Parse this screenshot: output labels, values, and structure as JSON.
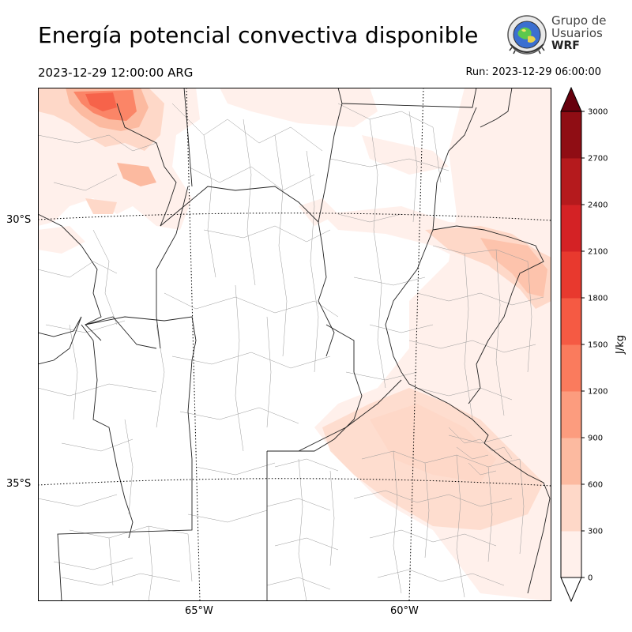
{
  "header": {
    "title": "Energía potencial convectiva disponible",
    "valid_time": "2023-12-29 12:00:00 ARG",
    "run_time": "Run: 2023-12-29 06:00:00"
  },
  "logo": {
    "line1": "Grupo de",
    "line2": "Usuarios",
    "line3": "WRF"
  },
  "map": {
    "lat_labels": [
      "30°S",
      "35°S"
    ],
    "lon_labels": [
      "65°W",
      "60°W"
    ],
    "field_colors": [
      "#fff5f0",
      "#fee0d2",
      "#fcbba1",
      "#fc9272",
      "#fb6a4a"
    ]
  },
  "colorbar": {
    "unit": "J/kg",
    "ticks": [
      "0",
      "300",
      "600",
      "900",
      "1200",
      "1500",
      "1800",
      "2100",
      "2400",
      "2700",
      "3000"
    ],
    "colors": [
      "#fff0eb",
      "#fed8c8",
      "#fcbaa0",
      "#fc9c7e",
      "#fa7b5d",
      "#f55a43",
      "#e8392e",
      "#d42225",
      "#b51a1d",
      "#8f0d14"
    ],
    "extend_color": "#67000d"
  }
}
